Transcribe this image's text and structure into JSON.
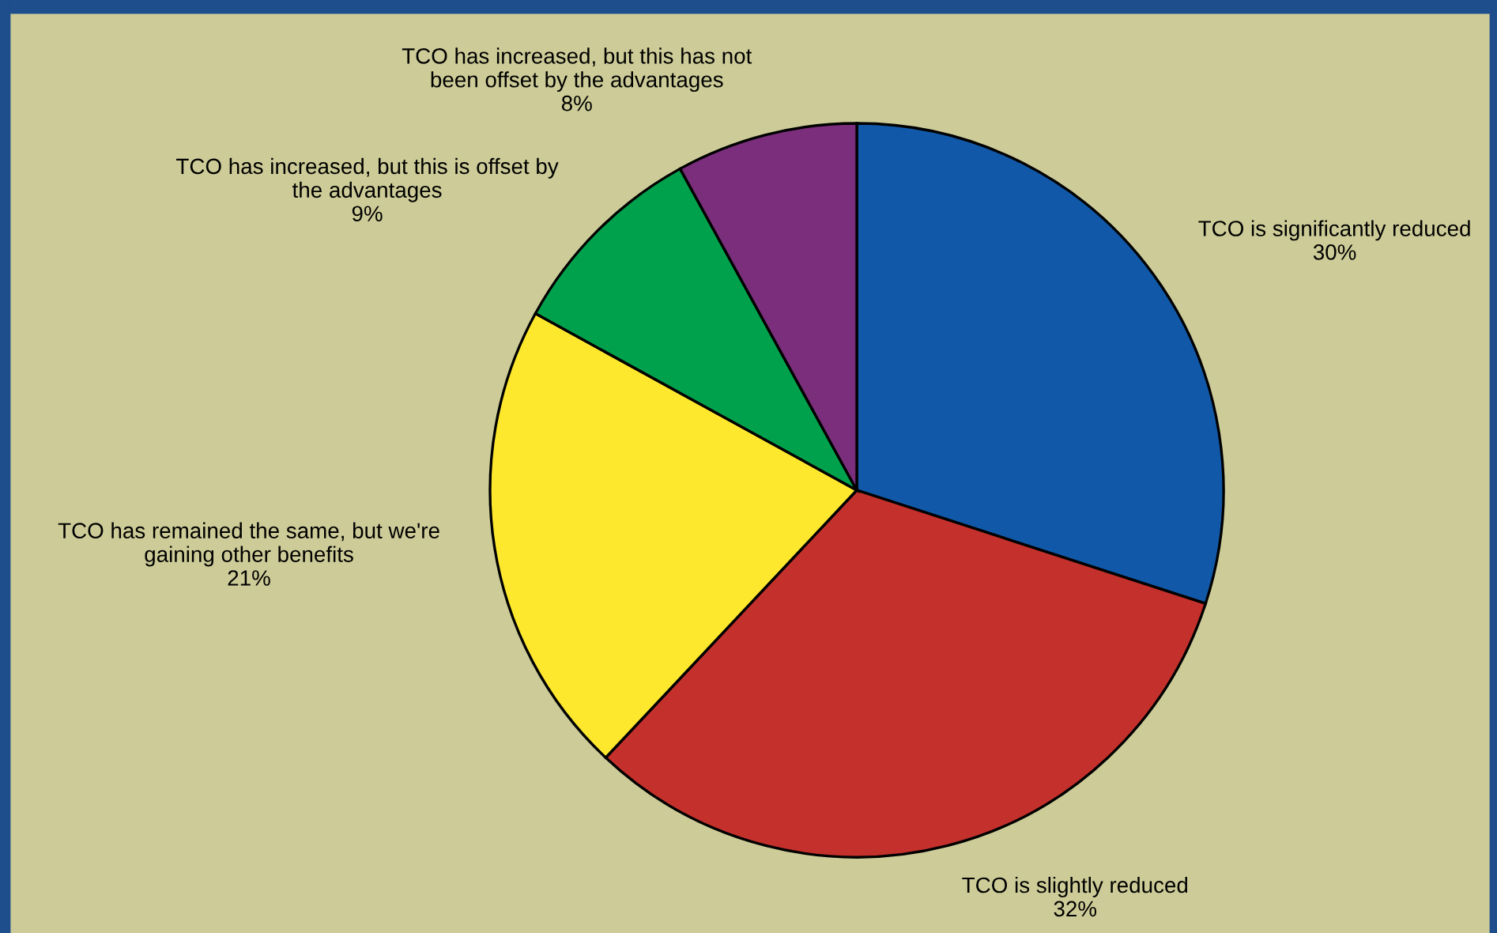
{
  "chart_data": {
    "type": "pie",
    "categories": [
      "TCO is significantly reduced",
      "TCO is slightly reduced",
      "TCO has remained the same, but we're\ngaining other benefits",
      "TCO has increased, but this is offset by\nthe advantages",
      "TCO has increased, but this has not\nbeen offset by the advantages"
    ],
    "values": [
      30,
      32,
      21,
      9,
      8
    ],
    "value_labels": [
      "30%",
      "32%",
      "21%",
      "9%",
      "8%"
    ],
    "colors": [
      "#1159a8",
      "#c4312c",
      "#fde82d",
      "#00a14c",
      "#7b2e7b"
    ],
    "legend": false
  }
}
